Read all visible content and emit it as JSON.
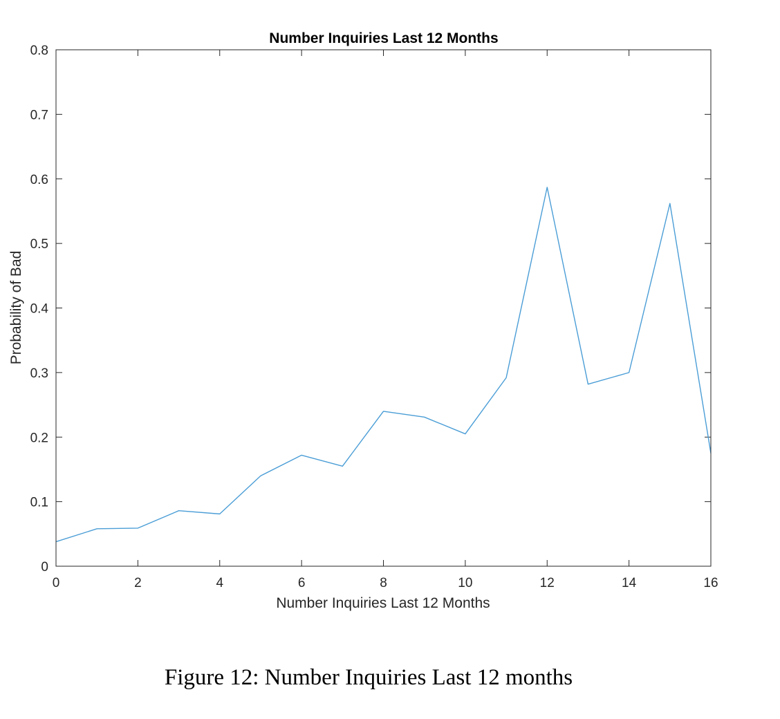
{
  "figure_caption": "Figure 12: Number Inquiries Last 12 months",
  "chart_data": {
    "type": "line",
    "title": "Number Inquiries Last 12 Months",
    "xlabel": "Number Inquiries Last 12 Months",
    "ylabel": "Probability of Bad",
    "xlim": [
      0,
      16
    ],
    "ylim": [
      0,
      0.8
    ],
    "xticks": [
      "0",
      "2",
      "4",
      "6",
      "8",
      "10",
      "12",
      "14",
      "16"
    ],
    "yticks": [
      "0",
      "0.1",
      "0.2",
      "0.3",
      "0.4",
      "0.5",
      "0.6",
      "0.7",
      "0.8"
    ],
    "grid": false,
    "line_color": "#4a9dd6",
    "series": [
      {
        "x": [
          0,
          1,
          2,
          3,
          4,
          5,
          6,
          7,
          8,
          9,
          10,
          11,
          12,
          13,
          14,
          15,
          16
        ],
        "y": [
          0.038,
          0.058,
          0.059,
          0.086,
          0.081,
          0.14,
          0.172,
          0.155,
          0.24,
          0.231,
          0.205,
          0.292,
          0.587,
          0.282,
          0.3,
          0.562,
          0.175
        ]
      }
    ]
  }
}
